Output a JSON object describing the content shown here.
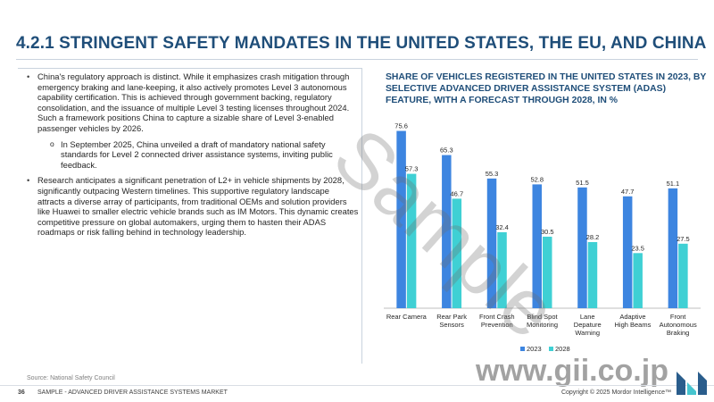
{
  "slide": {
    "title": "4.2.1 STRINGENT SAFETY MANDATES IN THE UNITED STATES, THE EU, AND CHINA",
    "bullets": [
      "China's regulatory approach is distinct. While it emphasizes crash mitigation through emergency braking and lane-keeping, it also actively promotes Level 3 autonomous capability certification. This is achieved through government backing, regulatory consolidation, and the issuance of multiple Level 3 testing licenses throughout 2024. Such a framework positions China to capture a sizable share of Level 3-enabled passenger vehicles by 2026.",
      "Research anticipates a significant penetration of L2+ in vehicle shipments by 2028, significantly outpacing Western timelines. This supportive regulatory landscape attracts a diverse array of participants, from traditional OEMs and solution providers like Huawei to smaller electric vehicle brands such as IM Motors. This dynamic creates competitive pressure on global automakers, urging them to hasten their ADAS roadmaps or risk falling behind in technology leadership."
    ],
    "sub_bullet": "In September 2025, China unveiled a draft of mandatory national safety standards for Level 2 connected driver assistance systems, inviting public feedback.",
    "source": "Source: National Safety Council",
    "page_number": "36",
    "footer_text": "SAMPLE - ADVANCED DRIVER ASSISTANCE SYSTEMS MARKET",
    "copyright": "Copyright © 2025 Mordor Intelligence™",
    "watermark_sample": "Sample",
    "watermark_url": "www.gii.co.jp"
  },
  "colors": {
    "title": "#1f4e79",
    "series_2023": "#3d85e0",
    "series_2028": "#3fd0d4",
    "logo_dark": "#2a5d8c",
    "logo_light": "#46c5cf"
  },
  "chart_data": {
    "type": "bar",
    "title": "SHARE OF VEHICLES REGISTERED IN THE UNITED STATES IN 2023, BY SELECTIVE ADVANCED DRIVER ASSISTANCE SYSTEM (ADAS) FEATURE, WITH A FORECAST THROUGH 2028, IN %",
    "categories": [
      "Rear Camera",
      "Rear Park Sensors",
      "Front Crash Prevention",
      "Blind Spot Monitoring",
      "Lane Depature Warning",
      "Adaptive High Beams",
      "Front Autonomous Braking"
    ],
    "category_lines": [
      [
        "Rear Camera"
      ],
      [
        "Rear Park",
        "Sensors"
      ],
      [
        "Front Crash",
        "Prevention"
      ],
      [
        "Blind Spot",
        "Monitoring"
      ],
      [
        "Lane",
        "Depature",
        "Warning"
      ],
      [
        "Adaptive",
        "High Beams"
      ],
      [
        "Front",
        "Autonomous",
        "Braking"
      ]
    ],
    "series": [
      {
        "name": "2023",
        "values": [
          75.6,
          65.3,
          55.3,
          52.8,
          51.5,
          47.7,
          51.1
        ]
      },
      {
        "name": "2028",
        "values": [
          57.3,
          46.7,
          32.4,
          30.5,
          28.2,
          23.5,
          27.5
        ]
      }
    ],
    "ylim": [
      0,
      80
    ],
    "legend": "bottom",
    "grid": false
  }
}
